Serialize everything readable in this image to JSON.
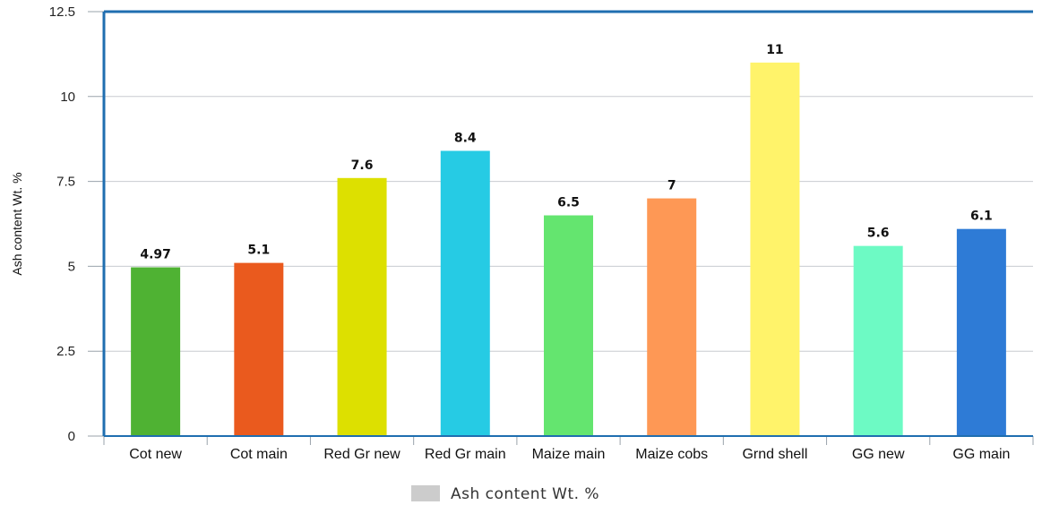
{
  "chart_data": {
    "type": "bar",
    "categories": [
      "Cot new",
      "Cot main",
      "Red Gr new",
      "Red Gr main",
      "Maize main",
      "Maize cobs",
      "Grnd shell",
      "GG new",
      "GG main"
    ],
    "values": [
      4.97,
      5.1,
      7.6,
      8.4,
      6.5,
      7,
      11,
      5.6,
      6.1
    ],
    "value_labels": [
      "4.97",
      "5.1",
      "7.6",
      "8.4",
      "6.5",
      "7",
      "11",
      "5.6",
      "6.1"
    ],
    "bar_colors": [
      "#4fb233",
      "#ea5a1e",
      "#dde000",
      "#26cbe4",
      "#64e56f",
      "#fe9855",
      "#fff36a",
      "#6dfac4",
      "#2e7bd6"
    ],
    "title": "",
    "xlabel": "",
    "ylabel": "Ash content Wt. %",
    "ylim": [
      0,
      12.5
    ],
    "yticks": [
      0,
      2.5,
      5,
      7.5,
      10,
      12.5
    ],
    "ytick_labels": [
      "0",
      "2.5",
      "5",
      "7.5",
      "10",
      "12.5"
    ],
    "grid": true,
    "legend": {
      "position": "bottom",
      "entries": [
        {
          "label": "Ash content Wt. %",
          "color": "#cccccc"
        }
      ]
    },
    "axis_color": "#1f6eb0"
  }
}
